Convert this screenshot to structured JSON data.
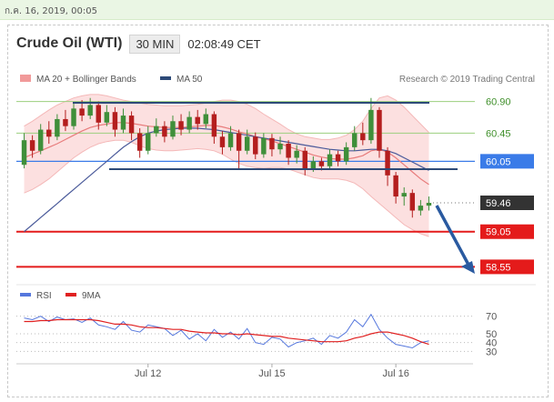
{
  "top_bar": {
    "text": "ก.ค. 16, 2019, 00:05"
  },
  "header": {
    "instrument": "Crude Oil (WTI)",
    "timeframe": "30 MIN",
    "time": "02:08:49 CET"
  },
  "legend": {
    "ma20_bb": "MA 20 + Bollinger Bands",
    "ma50": "MA 50",
    "credit": "Research © 2019 Trading Central"
  },
  "rsi_legend": {
    "rsi": "RSI",
    "ma9": "9MA"
  },
  "colors": {
    "candle_up": "#3f8f3a",
    "candle_down": "#b41e1e",
    "ma20": "#e87c7c",
    "bollinger_fill": "#fbdada",
    "ma50": "#4a5a9a",
    "resistance_green": "#9ccf7e",
    "support_red": "#e41b1b",
    "pivot_blue": "#3a7be8",
    "trend_line": "#2d4a78",
    "arrow": "#2a5aa0",
    "rsi_line": "#5577dd",
    "rsi_ma": "#e02020"
  },
  "chart_data": {
    "type": "candlestick",
    "instrument": "Crude Oil (WTI)",
    "timeframe": "30 MIN",
    "y_range": [
      58.4,
      61.05
    ],
    "x_ticks": [
      "Jul 12",
      "Jul 15",
      "Jul 16"
    ],
    "price_levels": [
      {
        "value": 60.9,
        "label": "60.90",
        "kind": "resistance"
      },
      {
        "value": 60.45,
        "label": "60.45",
        "kind": "resistance"
      },
      {
        "value": 60.05,
        "label": "60.05",
        "kind": "pivot"
      },
      {
        "value": 59.46,
        "label": "59.46",
        "kind": "last"
      },
      {
        "value": 59.05,
        "label": "59.05",
        "kind": "support"
      },
      {
        "value": 58.55,
        "label": "58.55",
        "kind": "support"
      }
    ],
    "candles": [
      {
        "o": 60.0,
        "c": 60.35,
        "h": 60.45,
        "l": 59.95
      },
      {
        "o": 60.35,
        "c": 60.2,
        "h": 60.42,
        "l": 60.1
      },
      {
        "o": 60.2,
        "c": 60.5,
        "h": 60.58,
        "l": 60.15
      },
      {
        "o": 60.5,
        "c": 60.4,
        "h": 60.62,
        "l": 60.3
      },
      {
        "o": 60.4,
        "c": 60.65,
        "h": 60.72,
        "l": 60.35
      },
      {
        "o": 60.65,
        "c": 60.55,
        "h": 60.78,
        "l": 60.48
      },
      {
        "o": 60.55,
        "c": 60.8,
        "h": 60.88,
        "l": 60.5
      },
      {
        "o": 60.8,
        "c": 60.7,
        "h": 60.92,
        "l": 60.62
      },
      {
        "o": 60.7,
        "c": 60.85,
        "h": 60.95,
        "l": 60.65
      },
      {
        "o": 60.85,
        "c": 60.6,
        "h": 60.9,
        "l": 60.5
      },
      {
        "o": 60.6,
        "c": 60.75,
        "h": 60.85,
        "l": 60.55
      },
      {
        "o": 60.75,
        "c": 60.5,
        "h": 60.82,
        "l": 60.4
      },
      {
        "o": 60.5,
        "c": 60.7,
        "h": 60.8,
        "l": 60.45
      },
      {
        "o": 60.7,
        "c": 60.45,
        "h": 60.76,
        "l": 60.35
      },
      {
        "o": 60.45,
        "c": 60.2,
        "h": 60.52,
        "l": 60.1
      },
      {
        "o": 60.2,
        "c": 60.45,
        "h": 60.55,
        "l": 60.15
      },
      {
        "o": 60.45,
        "c": 60.55,
        "h": 60.66,
        "l": 60.4
      },
      {
        "o": 60.55,
        "c": 60.4,
        "h": 60.62,
        "l": 60.32
      },
      {
        "o": 60.4,
        "c": 60.62,
        "h": 60.7,
        "l": 60.36
      },
      {
        "o": 60.62,
        "c": 60.5,
        "h": 60.72,
        "l": 60.42
      },
      {
        "o": 60.5,
        "c": 60.68,
        "h": 60.76,
        "l": 60.45
      },
      {
        "o": 60.68,
        "c": 60.58,
        "h": 60.78,
        "l": 60.5
      },
      {
        "o": 60.58,
        "c": 60.72,
        "h": 60.8,
        "l": 60.52
      },
      {
        "o": 60.72,
        "c": 60.4,
        "h": 60.76,
        "l": 60.3
      },
      {
        "o": 60.4,
        "c": 60.25,
        "h": 60.48,
        "l": 60.15
      },
      {
        "o": 60.25,
        "c": 60.45,
        "h": 60.55,
        "l": 60.2
      },
      {
        "o": 60.45,
        "c": 60.2,
        "h": 60.5,
        "l": 59.95
      },
      {
        "o": 60.2,
        "c": 60.4,
        "h": 60.5,
        "l": 60.15
      },
      {
        "o": 60.4,
        "c": 60.15,
        "h": 60.46,
        "l": 60.08
      },
      {
        "o": 60.15,
        "c": 60.38,
        "h": 60.45,
        "l": 60.1
      },
      {
        "o": 60.38,
        "c": 60.22,
        "h": 60.44,
        "l": 60.12
      },
      {
        "o": 60.22,
        "c": 60.3,
        "h": 60.4,
        "l": 60.15
      },
      {
        "o": 60.3,
        "c": 60.1,
        "h": 60.35,
        "l": 60.0
      },
      {
        "o": 60.1,
        "c": 60.2,
        "h": 60.28,
        "l": 60.02
      },
      {
        "o": 60.2,
        "c": 59.95,
        "h": 60.25,
        "l": 59.85
      },
      {
        "o": 59.95,
        "c": 60.05,
        "h": 60.12,
        "l": 59.9
      },
      {
        "o": 60.05,
        "c": 59.98,
        "h": 60.1,
        "l": 59.92
      },
      {
        "o": 59.98,
        "c": 60.15,
        "h": 60.22,
        "l": 59.94
      },
      {
        "o": 60.15,
        "c": 60.05,
        "h": 60.2,
        "l": 59.98
      },
      {
        "o": 60.05,
        "c": 60.25,
        "h": 60.32,
        "l": 60.0
      },
      {
        "o": 60.25,
        "c": 60.45,
        "h": 60.55,
        "l": 60.2
      },
      {
        "o": 60.45,
        "c": 60.35,
        "h": 60.6,
        "l": 60.28
      },
      {
        "o": 60.35,
        "c": 60.78,
        "h": 60.95,
        "l": 60.3
      },
      {
        "o": 60.78,
        "c": 60.2,
        "h": 60.82,
        "l": 60.1
      },
      {
        "o": 60.2,
        "c": 59.85,
        "h": 60.25,
        "l": 59.7
      },
      {
        "o": 59.85,
        "c": 59.55,
        "h": 59.9,
        "l": 59.45
      },
      {
        "o": 59.55,
        "c": 59.6,
        "h": 59.68,
        "l": 59.42
      },
      {
        "o": 59.6,
        "c": 59.35,
        "h": 59.65,
        "l": 59.25
      },
      {
        "o": 59.35,
        "c": 59.42,
        "h": 59.5,
        "l": 59.28
      },
      {
        "o": 59.42,
        "c": 59.46,
        "h": 59.55,
        "l": 59.35
      }
    ],
    "ma20": [
      60.1,
      60.15,
      60.2,
      60.25,
      60.3,
      60.36,
      60.42,
      60.48,
      60.53,
      60.56,
      60.58,
      60.6,
      60.6,
      60.59,
      60.57,
      60.55,
      60.54,
      60.53,
      60.53,
      60.53,
      60.54,
      60.55,
      60.56,
      60.56,
      60.54,
      60.51,
      60.47,
      60.44,
      60.4,
      60.37,
      60.34,
      60.3,
      60.26,
      60.22,
      60.18,
      60.14,
      60.11,
      60.09,
      60.08,
      60.08,
      60.1,
      60.13,
      60.2,
      60.22,
      60.18,
      60.1,
      60.0,
      59.9,
      59.8,
      59.72
    ],
    "bb_upper": [
      60.55,
      60.62,
      60.7,
      60.78,
      60.85,
      60.9,
      60.95,
      60.98,
      61.0,
      61.0,
      60.98,
      60.95,
      60.92,
      60.9,
      60.88,
      60.86,
      60.85,
      60.84,
      60.84,
      60.84,
      60.85,
      60.86,
      60.88,
      60.9,
      60.92,
      60.92,
      60.9,
      60.86,
      60.8,
      60.72,
      60.65,
      60.58,
      60.5,
      60.44,
      60.4,
      60.38,
      60.36,
      60.36,
      60.38,
      60.42,
      60.5,
      60.62,
      60.8,
      60.95,
      60.98,
      60.92,
      60.82,
      60.7,
      60.58,
      60.46
    ],
    "bb_lower": [
      59.6,
      59.65,
      59.72,
      59.8,
      59.9,
      60.0,
      60.1,
      60.18,
      60.25,
      60.3,
      60.33,
      60.35,
      60.35,
      60.32,
      60.27,
      60.23,
      60.21,
      60.2,
      60.2,
      60.21,
      60.22,
      60.23,
      60.22,
      60.2,
      60.15,
      60.08,
      60.02,
      59.98,
      59.96,
      59.95,
      59.96,
      59.96,
      59.94,
      59.9,
      59.86,
      59.82,
      59.8,
      59.8,
      59.8,
      59.78,
      59.74,
      59.66,
      59.55,
      59.45,
      59.35,
      59.25,
      59.15,
      59.08,
      59.02,
      58.98
    ],
    "ma50": [
      59.05,
      59.15,
      59.25,
      59.35,
      59.45,
      59.55,
      59.65,
      59.75,
      59.85,
      59.95,
      60.05,
      60.15,
      60.25,
      60.33,
      60.4,
      60.45,
      60.48,
      60.5,
      60.51,
      60.52,
      60.52,
      60.52,
      60.51,
      60.5,
      60.48,
      60.46,
      60.44,
      60.42,
      60.4,
      60.38,
      60.36,
      60.34,
      60.32,
      60.3,
      60.28,
      60.26,
      60.24,
      60.22,
      60.21,
      60.2,
      60.2,
      60.21,
      60.22,
      60.22,
      60.2,
      60.16,
      60.1,
      60.04,
      59.98,
      59.92
    ],
    "rsi": {
      "y_range": [
        20,
        80
      ],
      "ticks": [
        70,
        50,
        40,
        30
      ],
      "rsi": [
        68,
        66,
        70,
        64,
        69,
        66,
        67,
        63,
        68,
        60,
        58,
        55,
        64,
        54,
        52,
        60,
        58,
        56,
        48,
        54,
        44,
        50,
        42,
        55,
        46,
        52,
        44,
        56,
        40,
        38,
        46,
        44,
        35,
        40,
        42,
        45,
        38,
        48,
        45,
        52,
        66,
        58,
        72,
        55,
        45,
        38,
        36,
        34,
        40,
        42
      ],
      "ma9": [
        64,
        64,
        65,
        65,
        66,
        66,
        66,
        66,
        66,
        65,
        63,
        61,
        61,
        60,
        58,
        57,
        57,
        56,
        55,
        55,
        53,
        52,
        51,
        51,
        50,
        50,
        49,
        50,
        49,
        48,
        47,
        47,
        45,
        44,
        43,
        42,
        41,
        41,
        41,
        42,
        45,
        47,
        50,
        52,
        52,
        50,
        48,
        45,
        41,
        38
      ]
    }
  }
}
